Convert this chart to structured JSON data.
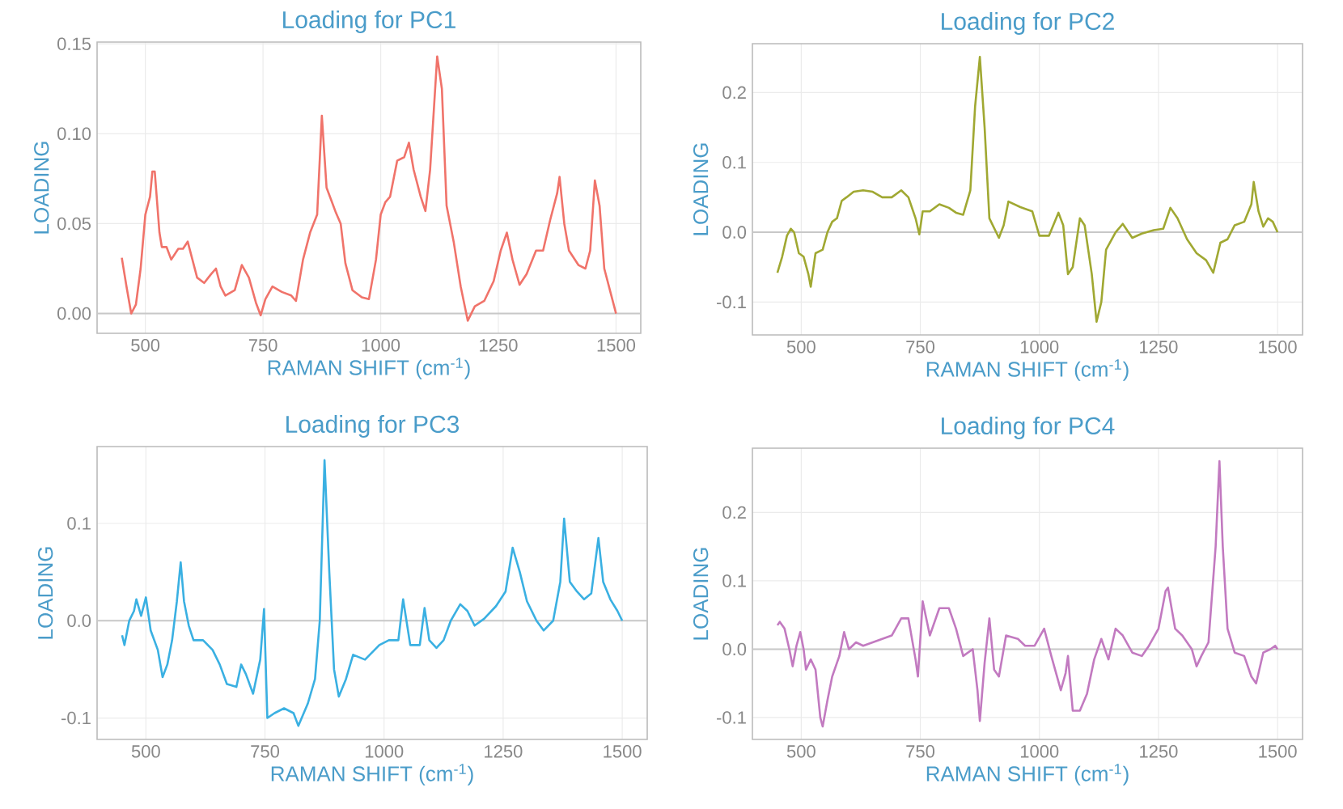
{
  "chart_data": [
    {
      "type": "line",
      "title": "Loading for PC1",
      "xlabel": "RAMAN SHIFT (cm$^{-1}$)",
      "ylabel": "LOADING",
      "color": "#f0736a",
      "grid": true,
      "xlim": [
        397.5,
        1552.5
      ],
      "ylim": [
        -0.011,
        0.151
      ],
      "xticks": [
        500,
        750,
        1000,
        1250,
        1500
      ],
      "yticks": [
        {
          "value": 0,
          "label": "0.00"
        },
        {
          "value": 0.05,
          "label": "0.05"
        },
        {
          "value": 0.1,
          "label": "0.10"
        },
        {
          "value": 0.15,
          "label": "0.15"
        }
      ],
      "ref_lines": [
        {
          "axis": "y",
          "value": 0
        }
      ],
      "x": [
        450,
        460,
        470,
        480,
        490,
        500,
        510,
        515,
        520,
        530,
        535,
        545,
        555,
        570,
        580,
        590,
        600,
        610,
        625,
        640,
        650,
        660,
        670,
        690,
        705,
        720,
        735,
        745,
        755,
        770,
        790,
        810,
        820,
        835,
        850,
        865,
        875,
        885,
        895,
        905,
        915,
        925,
        940,
        960,
        975,
        990,
        1000,
        1010,
        1020,
        1035,
        1050,
        1060,
        1070,
        1085,
        1095,
        1105,
        1120,
        1130,
        1140,
        1155,
        1170,
        1185,
        1200,
        1220,
        1240,
        1255,
        1268,
        1280,
        1295,
        1310,
        1330,
        1345,
        1360,
        1375,
        1380,
        1390,
        1400,
        1420,
        1435,
        1445,
        1455,
        1465,
        1475,
        1490,
        1500
      ],
      "values": [
        0.031,
        0.015,
        0.0,
        0.005,
        0.025,
        0.055,
        0.065,
        0.079,
        0.079,
        0.045,
        0.037,
        0.037,
        0.03,
        0.036,
        0.036,
        0.04,
        0.03,
        0.02,
        0.017,
        0.022,
        0.025,
        0.015,
        0.01,
        0.013,
        0.027,
        0.02,
        0.006,
        -0.001,
        0.008,
        0.015,
        0.012,
        0.01,
        0.007,
        0.03,
        0.045,
        0.055,
        0.11,
        0.07,
        0.063,
        0.056,
        0.05,
        0.028,
        0.013,
        0.009,
        0.008,
        0.03,
        0.055,
        0.062,
        0.065,
        0.085,
        0.087,
        0.095,
        0.08,
        0.065,
        0.057,
        0.08,
        0.143,
        0.125,
        0.06,
        0.04,
        0.015,
        -0.004,
        0.004,
        0.007,
        0.018,
        0.035,
        0.045,
        0.03,
        0.016,
        0.022,
        0.035,
        0.035,
        0.052,
        0.067,
        0.076,
        0.05,
        0.035,
        0.027,
        0.025,
        0.035,
        0.074,
        0.06,
        0.025,
        0.01,
        0.0
      ]
    },
    {
      "type": "line",
      "title": "Loading for PC2",
      "xlabel": "RAMAN SHIFT (cm$^{-1}$)",
      "ylabel": "LOADING",
      "color": "#a0a832",
      "grid": true,
      "xlim": [
        397.5,
        1552.5
      ],
      "ylim": [
        -0.147,
        0.27
      ],
      "xticks": [
        500,
        750,
        1000,
        1250,
        1500
      ],
      "yticks": [
        {
          "value": -0.1,
          "label": "-0.1"
        },
        {
          "value": 0,
          "label": "0.0"
        },
        {
          "value": 0.1,
          "label": "0.1"
        },
        {
          "value": 0.2,
          "label": "0.2"
        }
      ],
      "ref_lines": [
        {
          "axis": "y",
          "value": 0
        }
      ],
      "x": [
        450,
        460,
        470,
        478,
        485,
        495,
        505,
        515,
        520,
        530,
        545,
        555,
        565,
        575,
        585,
        595,
        610,
        630,
        650,
        670,
        690,
        710,
        725,
        740,
        748,
        755,
        770,
        790,
        810,
        825,
        840,
        855,
        865,
        875,
        885,
        895,
        915,
        925,
        935,
        960,
        985,
        1000,
        1020,
        1040,
        1050,
        1060,
        1070,
        1085,
        1095,
        1110,
        1120,
        1130,
        1140,
        1160,
        1175,
        1195,
        1215,
        1240,
        1260,
        1275,
        1290,
        1310,
        1330,
        1350,
        1365,
        1380,
        1395,
        1410,
        1430,
        1445,
        1450,
        1460,
        1470,
        1480,
        1490,
        1500
      ],
      "values": [
        -0.058,
        -0.035,
        -0.005,
        0.005,
        0.0,
        -0.03,
        -0.035,
        -0.06,
        -0.078,
        -0.03,
        -0.025,
        0.0,
        0.015,
        0.02,
        0.045,
        0.05,
        0.058,
        0.06,
        0.058,
        0.05,
        0.05,
        0.06,
        0.05,
        0.02,
        -0.003,
        0.03,
        0.03,
        0.04,
        0.035,
        0.028,
        0.025,
        0.06,
        0.18,
        0.251,
        0.15,
        0.02,
        -0.008,
        0.01,
        0.044,
        0.036,
        0.03,
        -0.005,
        -0.005,
        0.028,
        0.01,
        -0.06,
        -0.05,
        0.02,
        0.01,
        -0.06,
        -0.128,
        -0.1,
        -0.025,
        0.0,
        0.012,
        -0.008,
        -0.002,
        0.003,
        0.005,
        0.035,
        0.02,
        -0.01,
        -0.03,
        -0.04,
        -0.058,
        -0.015,
        -0.01,
        0.01,
        0.015,
        0.04,
        0.072,
        0.03,
        0.008,
        0.02,
        0.015,
        0.0
      ]
    },
    {
      "type": "line",
      "title": "Loading for PC3",
      "xlabel": "RAMAN SHIFT (cm$^{-1}$)",
      "ylabel": "LOADING",
      "color": "#3ab0e2",
      "grid": true,
      "xlim": [
        397.5,
        1552.5
      ],
      "ylim": [
        -0.122,
        0.179
      ],
      "xticks": [
        500,
        750,
        1000,
        1250,
        1500
      ],
      "yticks": [
        {
          "value": -0.1,
          "label": "-0.1"
        },
        {
          "value": 0,
          "label": "0.0"
        },
        {
          "value": 0.1,
          "label": "0.1"
        }
      ],
      "ref_lines": [
        {
          "axis": "y",
          "value": 0
        }
      ],
      "x": [
        450,
        455,
        465,
        475,
        480,
        490,
        500,
        510,
        525,
        535,
        545,
        555,
        565,
        573,
        580,
        590,
        600,
        620,
        640,
        655,
        670,
        690,
        700,
        710,
        725,
        740,
        748,
        755,
        770,
        790,
        810,
        820,
        840,
        855,
        865,
        875,
        885,
        895,
        905,
        920,
        935,
        960,
        990,
        1010,
        1030,
        1040,
        1055,
        1075,
        1085,
        1095,
        1110,
        1125,
        1140,
        1160,
        1175,
        1190,
        1210,
        1235,
        1255,
        1270,
        1285,
        1300,
        1320,
        1335,
        1355,
        1370,
        1378,
        1390,
        1405,
        1420,
        1435,
        1450,
        1460,
        1475,
        1490,
        1500
      ],
      "values": [
        -0.015,
        -0.025,
        0.0,
        0.01,
        0.022,
        0.005,
        0.024,
        -0.01,
        -0.03,
        -0.058,
        -0.045,
        -0.02,
        0.02,
        0.06,
        0.02,
        -0.005,
        -0.02,
        -0.02,
        -0.03,
        -0.045,
        -0.065,
        -0.068,
        -0.045,
        -0.055,
        -0.075,
        -0.04,
        0.012,
        -0.1,
        -0.095,
        -0.09,
        -0.095,
        -0.108,
        -0.085,
        -0.06,
        0.0,
        0.165,
        0.05,
        -0.05,
        -0.078,
        -0.06,
        -0.035,
        -0.04,
        -0.025,
        -0.02,
        -0.02,
        0.022,
        -0.025,
        -0.025,
        0.013,
        -0.02,
        -0.028,
        -0.02,
        0.0,
        0.017,
        0.01,
        -0.005,
        0.002,
        0.015,
        0.03,
        0.075,
        0.05,
        0.02,
        0.0,
        -0.01,
        0.0,
        0.04,
        0.105,
        0.04,
        0.03,
        0.022,
        0.028,
        0.085,
        0.04,
        0.022,
        0.01,
        0.0
      ]
    },
    {
      "type": "line",
      "title": "Loading for PC4",
      "xlabel": "RAMAN SHIFT (cm$^{-1}$)",
      "ylabel": "LOADING",
      "color": "#c27ac0",
      "grid": true,
      "xlim": [
        397.5,
        1552.5
      ],
      "ylim": [
        -0.132,
        0.294
      ],
      "xticks": [
        500,
        750,
        1000,
        1250,
        1500
      ],
      "yticks": [
        {
          "value": -0.1,
          "label": "-0.1"
        },
        {
          "value": 0,
          "label": "0.0"
        },
        {
          "value": 0.1,
          "label": "0.1"
        },
        {
          "value": 0.2,
          "label": "0.2"
        }
      ],
      "ref_lines": [
        {
          "axis": "y",
          "value": 0
        }
      ],
      "x": [
        450,
        455,
        465,
        475,
        482,
        490,
        498,
        505,
        510,
        520,
        530,
        540,
        545,
        555,
        565,
        580,
        590,
        600,
        615,
        630,
        650,
        670,
        690,
        710,
        725,
        740,
        745,
        755,
        770,
        790,
        810,
        825,
        840,
        860,
        870,
        875,
        885,
        895,
        905,
        915,
        930,
        955,
        970,
        990,
        1010,
        1025,
        1045,
        1055,
        1060,
        1070,
        1085,
        1100,
        1115,
        1130,
        1145,
        1160,
        1175,
        1195,
        1215,
        1230,
        1250,
        1265,
        1270,
        1285,
        1300,
        1320,
        1330,
        1340,
        1355,
        1370,
        1378,
        1385,
        1395,
        1410,
        1430,
        1445,
        1455,
        1470,
        1485,
        1495,
        1500
      ],
      "values": [
        0.035,
        0.04,
        0.03,
        0.0,
        -0.025,
        0.005,
        0.025,
        0.0,
        -0.03,
        -0.015,
        -0.03,
        -0.1,
        -0.113,
        -0.075,
        -0.04,
        -0.01,
        0.025,
        0.0,
        0.01,
        0.005,
        0.01,
        0.015,
        0.02,
        0.045,
        0.045,
        -0.015,
        -0.04,
        0.07,
        0.02,
        0.06,
        0.06,
        0.03,
        -0.01,
        0.0,
        -0.06,
        -0.105,
        -0.02,
        0.045,
        -0.03,
        -0.04,
        0.02,
        0.015,
        0.005,
        0.005,
        0.03,
        -0.01,
        -0.06,
        -0.035,
        -0.01,
        -0.09,
        -0.09,
        -0.065,
        -0.015,
        0.015,
        -0.015,
        0.03,
        0.02,
        -0.005,
        -0.01,
        0.005,
        0.03,
        0.085,
        0.09,
        0.03,
        0.02,
        0.0,
        -0.025,
        -0.01,
        0.01,
        0.15,
        0.275,
        0.15,
        0.03,
        -0.005,
        -0.01,
        -0.04,
        -0.05,
        -0.005,
        0.0,
        0.005,
        0.0
      ]
    }
  ]
}
